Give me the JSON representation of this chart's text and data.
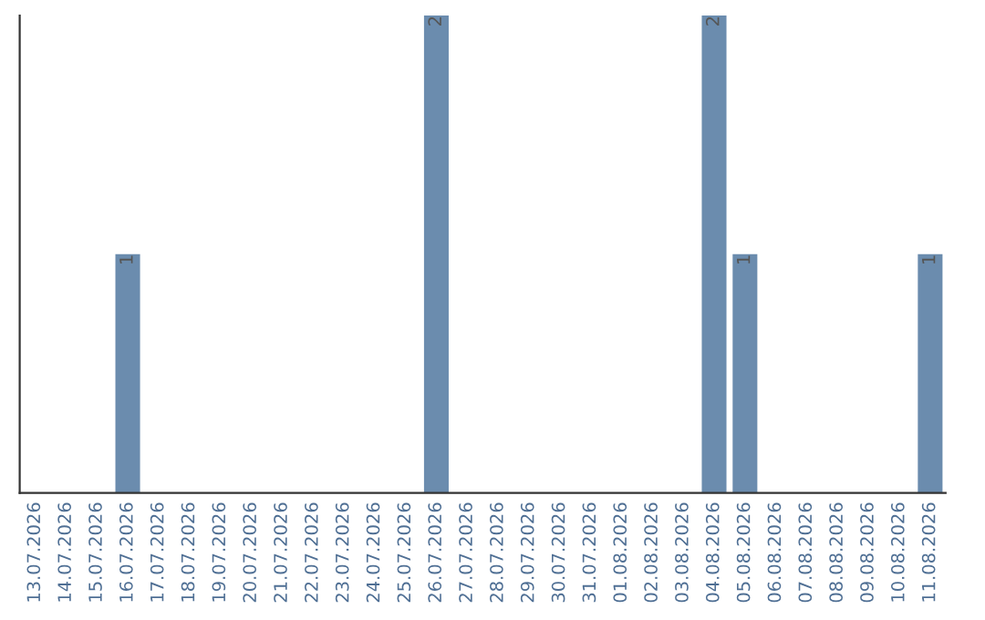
{
  "chart_data": {
    "type": "bar",
    "categories": [
      "13.07.2026",
      "14.07.2026",
      "15.07.2026",
      "16.07.2026",
      "17.07.2026",
      "18.07.2026",
      "19.07.2026",
      "20.07.2026",
      "21.07.2026",
      "22.07.2026",
      "23.07.2026",
      "24.07.2026",
      "25.07.2026",
      "26.07.2026",
      "27.07.2026",
      "28.07.2026",
      "29.07.2026",
      "30.07.2026",
      "31.07.2026",
      "01.08.2026",
      "02.08.2026",
      "03.08.2026",
      "04.08.2026",
      "05.08.2026",
      "06.08.2026",
      "07.08.2026",
      "08.08.2026",
      "09.08.2026",
      "10.08.2026",
      "11.08.2026"
    ],
    "values": [
      0,
      0,
      0,
      1,
      0,
      0,
      0,
      0,
      0,
      0,
      0,
      0,
      0,
      2,
      0,
      0,
      0,
      0,
      0,
      0,
      0,
      0,
      2,
      1,
      0,
      0,
      0,
      0,
      0,
      1
    ],
    "value_labels": [
      null,
      null,
      null,
      "1",
      null,
      null,
      null,
      null,
      null,
      null,
      null,
      null,
      null,
      "2",
      null,
      null,
      null,
      null,
      null,
      null,
      null,
      null,
      "2",
      "1",
      null,
      null,
      null,
      null,
      null,
      "1"
    ],
    "color": "#6b8cae",
    "ylim": [
      0,
      2
    ],
    "tick_labels": "x",
    "grid": false,
    "legend": false
  }
}
